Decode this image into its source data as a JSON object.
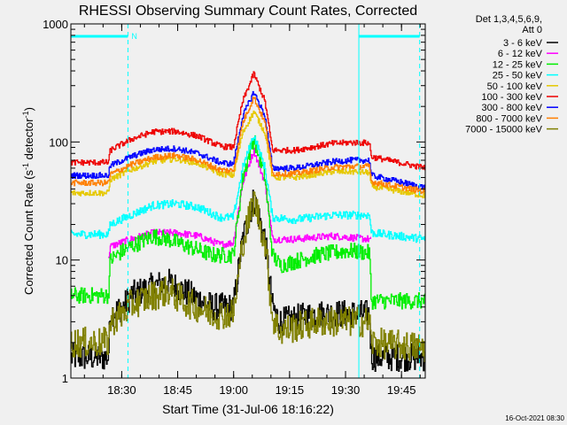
{
  "chart_data": {
    "type": "line",
    "title": "RHESSI Observing Summary Count Rates, Corrected",
    "xlabel": "Start Time (31-Jul-06 18:16:22)",
    "ylabel": "Corrected Count Rate (s⁻¹ detector⁻¹)",
    "ylabel_parts": [
      "Corrected Count Rate (s",
      "-1",
      " detector",
      "-1",
      ")"
    ],
    "yscale": "log",
    "ylim": [
      1,
      1000
    ],
    "xlim_minutes": [
      0,
      95
    ],
    "x_ticks": [
      {
        "minute": 13.63,
        "label": "18:30"
      },
      {
        "minute": 28.63,
        "label": "18:45"
      },
      {
        "minute": 43.63,
        "label": "19:00"
      },
      {
        "minute": 58.63,
        "label": "19:15"
      },
      {
        "minute": 73.63,
        "label": "19:30"
      },
      {
        "minute": 88.63,
        "label": "19:45"
      }
    ],
    "y_ticks": [
      {
        "value": 1,
        "label": "1"
      },
      {
        "value": 10,
        "label": "10"
      },
      {
        "value": 100,
        "label": "100"
      },
      {
        "value": 1000,
        "label": "1000"
      }
    ],
    "legend_header": [
      "Det 1,3,4,5,6,9,",
      "Att 0"
    ],
    "legend_position": "top-right",
    "night_marker_label": "N",
    "night_intervals_minutes": [
      [
        0,
        15.3
      ],
      [
        77.2,
        93.5
      ]
    ],
    "footer_date": "16-Oct-2021 08:30",
    "series": [
      {
        "name": "3 - 6 keV",
        "color": "#000000",
        "noise": 0.12,
        "points": [
          [
            0,
            1.5
          ],
          [
            10,
            1.5
          ],
          [
            10.5,
            3.5
          ],
          [
            14,
            4
          ],
          [
            16,
            5
          ],
          [
            22,
            6
          ],
          [
            26,
            6.5
          ],
          [
            30,
            5.5
          ],
          [
            38,
            4
          ],
          [
            43.5,
            4
          ],
          [
            46,
            15
          ],
          [
            49,
            33
          ],
          [
            52,
            15
          ],
          [
            54,
            4
          ],
          [
            56,
            3
          ],
          [
            66,
            3.5
          ],
          [
            74,
            3.5
          ],
          [
            80,
            3.5
          ],
          [
            80.5,
            1.5
          ],
          [
            95,
            1.5
          ]
        ]
      },
      {
        "name": "6 - 12 keV",
        "color": "#ff00ff",
        "noise": 0.03,
        "points": [
          [
            10,
            10
          ],
          [
            10.5,
            13
          ],
          [
            16,
            15
          ],
          [
            22,
            17
          ],
          [
            28,
            17
          ],
          [
            34,
            16
          ],
          [
            40,
            13.5
          ],
          [
            43.5,
            14
          ],
          [
            46,
            45
          ],
          [
            49,
            85
          ],
          [
            52,
            45
          ],
          [
            54,
            15
          ],
          [
            60,
            15
          ],
          [
            70,
            16
          ],
          [
            75,
            15.5
          ],
          [
            80,
            15
          ],
          [
            80.5,
            14.5
          ]
        ]
      },
      {
        "name": "12 - 25 keV",
        "color": "#00ee00",
        "noise": 0.07,
        "points": [
          [
            0,
            5
          ],
          [
            10,
            5
          ],
          [
            10.5,
            10
          ],
          [
            14,
            12
          ],
          [
            16,
            13
          ],
          [
            22,
            16
          ],
          [
            26,
            15
          ],
          [
            30,
            13.5
          ],
          [
            38,
            11
          ],
          [
            43.5,
            11
          ],
          [
            46,
            50
          ],
          [
            49,
            108
          ],
          [
            52,
            50
          ],
          [
            54,
            11
          ],
          [
            56,
            9
          ],
          [
            66,
            11
          ],
          [
            74,
            12
          ],
          [
            80,
            11.5
          ],
          [
            80.5,
            4.5
          ],
          [
            95,
            4.5
          ]
        ]
      },
      {
        "name": "25 - 50 keV",
        "color": "#00ffff",
        "noise": 0.035,
        "points": [
          [
            0,
            16.5
          ],
          [
            10,
            16.5
          ],
          [
            10.5,
            20
          ],
          [
            16,
            24
          ],
          [
            22,
            29
          ],
          [
            28,
            30
          ],
          [
            34,
            28
          ],
          [
            40,
            23
          ],
          [
            43.5,
            23
          ],
          [
            46,
            60
          ],
          [
            49,
            115
          ],
          [
            52,
            60
          ],
          [
            54,
            23
          ],
          [
            60,
            22
          ],
          [
            70,
            24
          ],
          [
            75,
            24
          ],
          [
            80,
            24
          ],
          [
            80.5,
            17
          ],
          [
            95,
            15
          ]
        ]
      },
      {
        "name": "50 - 100 keV",
        "color": "#e6c800",
        "noise": 0.025,
        "points": [
          [
            0,
            37
          ],
          [
            10,
            37
          ],
          [
            10.5,
            48
          ],
          [
            16,
            58
          ],
          [
            22,
            68
          ],
          [
            28,
            72
          ],
          [
            34,
            66
          ],
          [
            40,
            54
          ],
          [
            43.5,
            52
          ],
          [
            46,
            120
          ],
          [
            49,
            180
          ],
          [
            52,
            120
          ],
          [
            54,
            50
          ],
          [
            60,
            50
          ],
          [
            70,
            56
          ],
          [
            75,
            56
          ],
          [
            80,
            55
          ],
          [
            80.5,
            42
          ],
          [
            95,
            35
          ]
        ]
      },
      {
        "name": "100 - 300 keV",
        "color": "#ee0000",
        "noise": 0.025,
        "points": [
          [
            0,
            67
          ],
          [
            10,
            67
          ],
          [
            10.5,
            85
          ],
          [
            16,
            105
          ],
          [
            22,
            122
          ],
          [
            28,
            123
          ],
          [
            34,
            112
          ],
          [
            40,
            92
          ],
          [
            43.5,
            90
          ],
          [
            46,
            220
          ],
          [
            49,
            380
          ],
          [
            52,
            220
          ],
          [
            54,
            85
          ],
          [
            60,
            85
          ],
          [
            70,
            97
          ],
          [
            75,
            99
          ],
          [
            80,
            98
          ],
          [
            80.5,
            75
          ],
          [
            95,
            60
          ]
        ]
      },
      {
        "name": "300 - 800 keV",
        "color": "#0000ff",
        "noise": 0.025,
        "points": [
          [
            0,
            52
          ],
          [
            10,
            52
          ],
          [
            10.5,
            63
          ],
          [
            16,
            75
          ],
          [
            22,
            86
          ],
          [
            28,
            88
          ],
          [
            34,
            80
          ],
          [
            40,
            67
          ],
          [
            43.5,
            65
          ],
          [
            46,
            165
          ],
          [
            49,
            265
          ],
          [
            52,
            165
          ],
          [
            54,
            60
          ],
          [
            60,
            60
          ],
          [
            70,
            68
          ],
          [
            75,
            70
          ],
          [
            80,
            70
          ],
          [
            80.5,
            52
          ],
          [
            95,
            41
          ]
        ]
      },
      {
        "name": "800 - 7000 keV",
        "color": "#ff7f00",
        "noise": 0.025,
        "points": [
          [
            0,
            45
          ],
          [
            10,
            45
          ],
          [
            10.5,
            53
          ],
          [
            16,
            64
          ],
          [
            22,
            74
          ],
          [
            28,
            77
          ],
          [
            34,
            70
          ],
          [
            40,
            58
          ],
          [
            43.5,
            57
          ],
          [
            46,
            145
          ],
          [
            49,
            240
          ],
          [
            52,
            145
          ],
          [
            54,
            54
          ],
          [
            60,
            54
          ],
          [
            70,
            61
          ],
          [
            75,
            62
          ],
          [
            80,
            62
          ],
          [
            80.5,
            46
          ],
          [
            95,
            38
          ]
        ]
      },
      {
        "name": "7000 - 15000 keV",
        "color": "#808000",
        "noise": 0.13,
        "points": [
          [
            0,
            2
          ],
          [
            10,
            2
          ],
          [
            10.5,
            3
          ],
          [
            14,
            3.5
          ],
          [
            16,
            4.2
          ],
          [
            22,
            5
          ],
          [
            26,
            5.5
          ],
          [
            30,
            4.5
          ],
          [
            38,
            3.5
          ],
          [
            43.5,
            3.5
          ],
          [
            46,
            14
          ],
          [
            49,
            33
          ],
          [
            52,
            14
          ],
          [
            54,
            3.2
          ],
          [
            56,
            2.5
          ],
          [
            66,
            3
          ],
          [
            74,
            3
          ],
          [
            80,
            3
          ],
          [
            80.5,
            2
          ],
          [
            95,
            1.8
          ]
        ]
      }
    ]
  }
}
